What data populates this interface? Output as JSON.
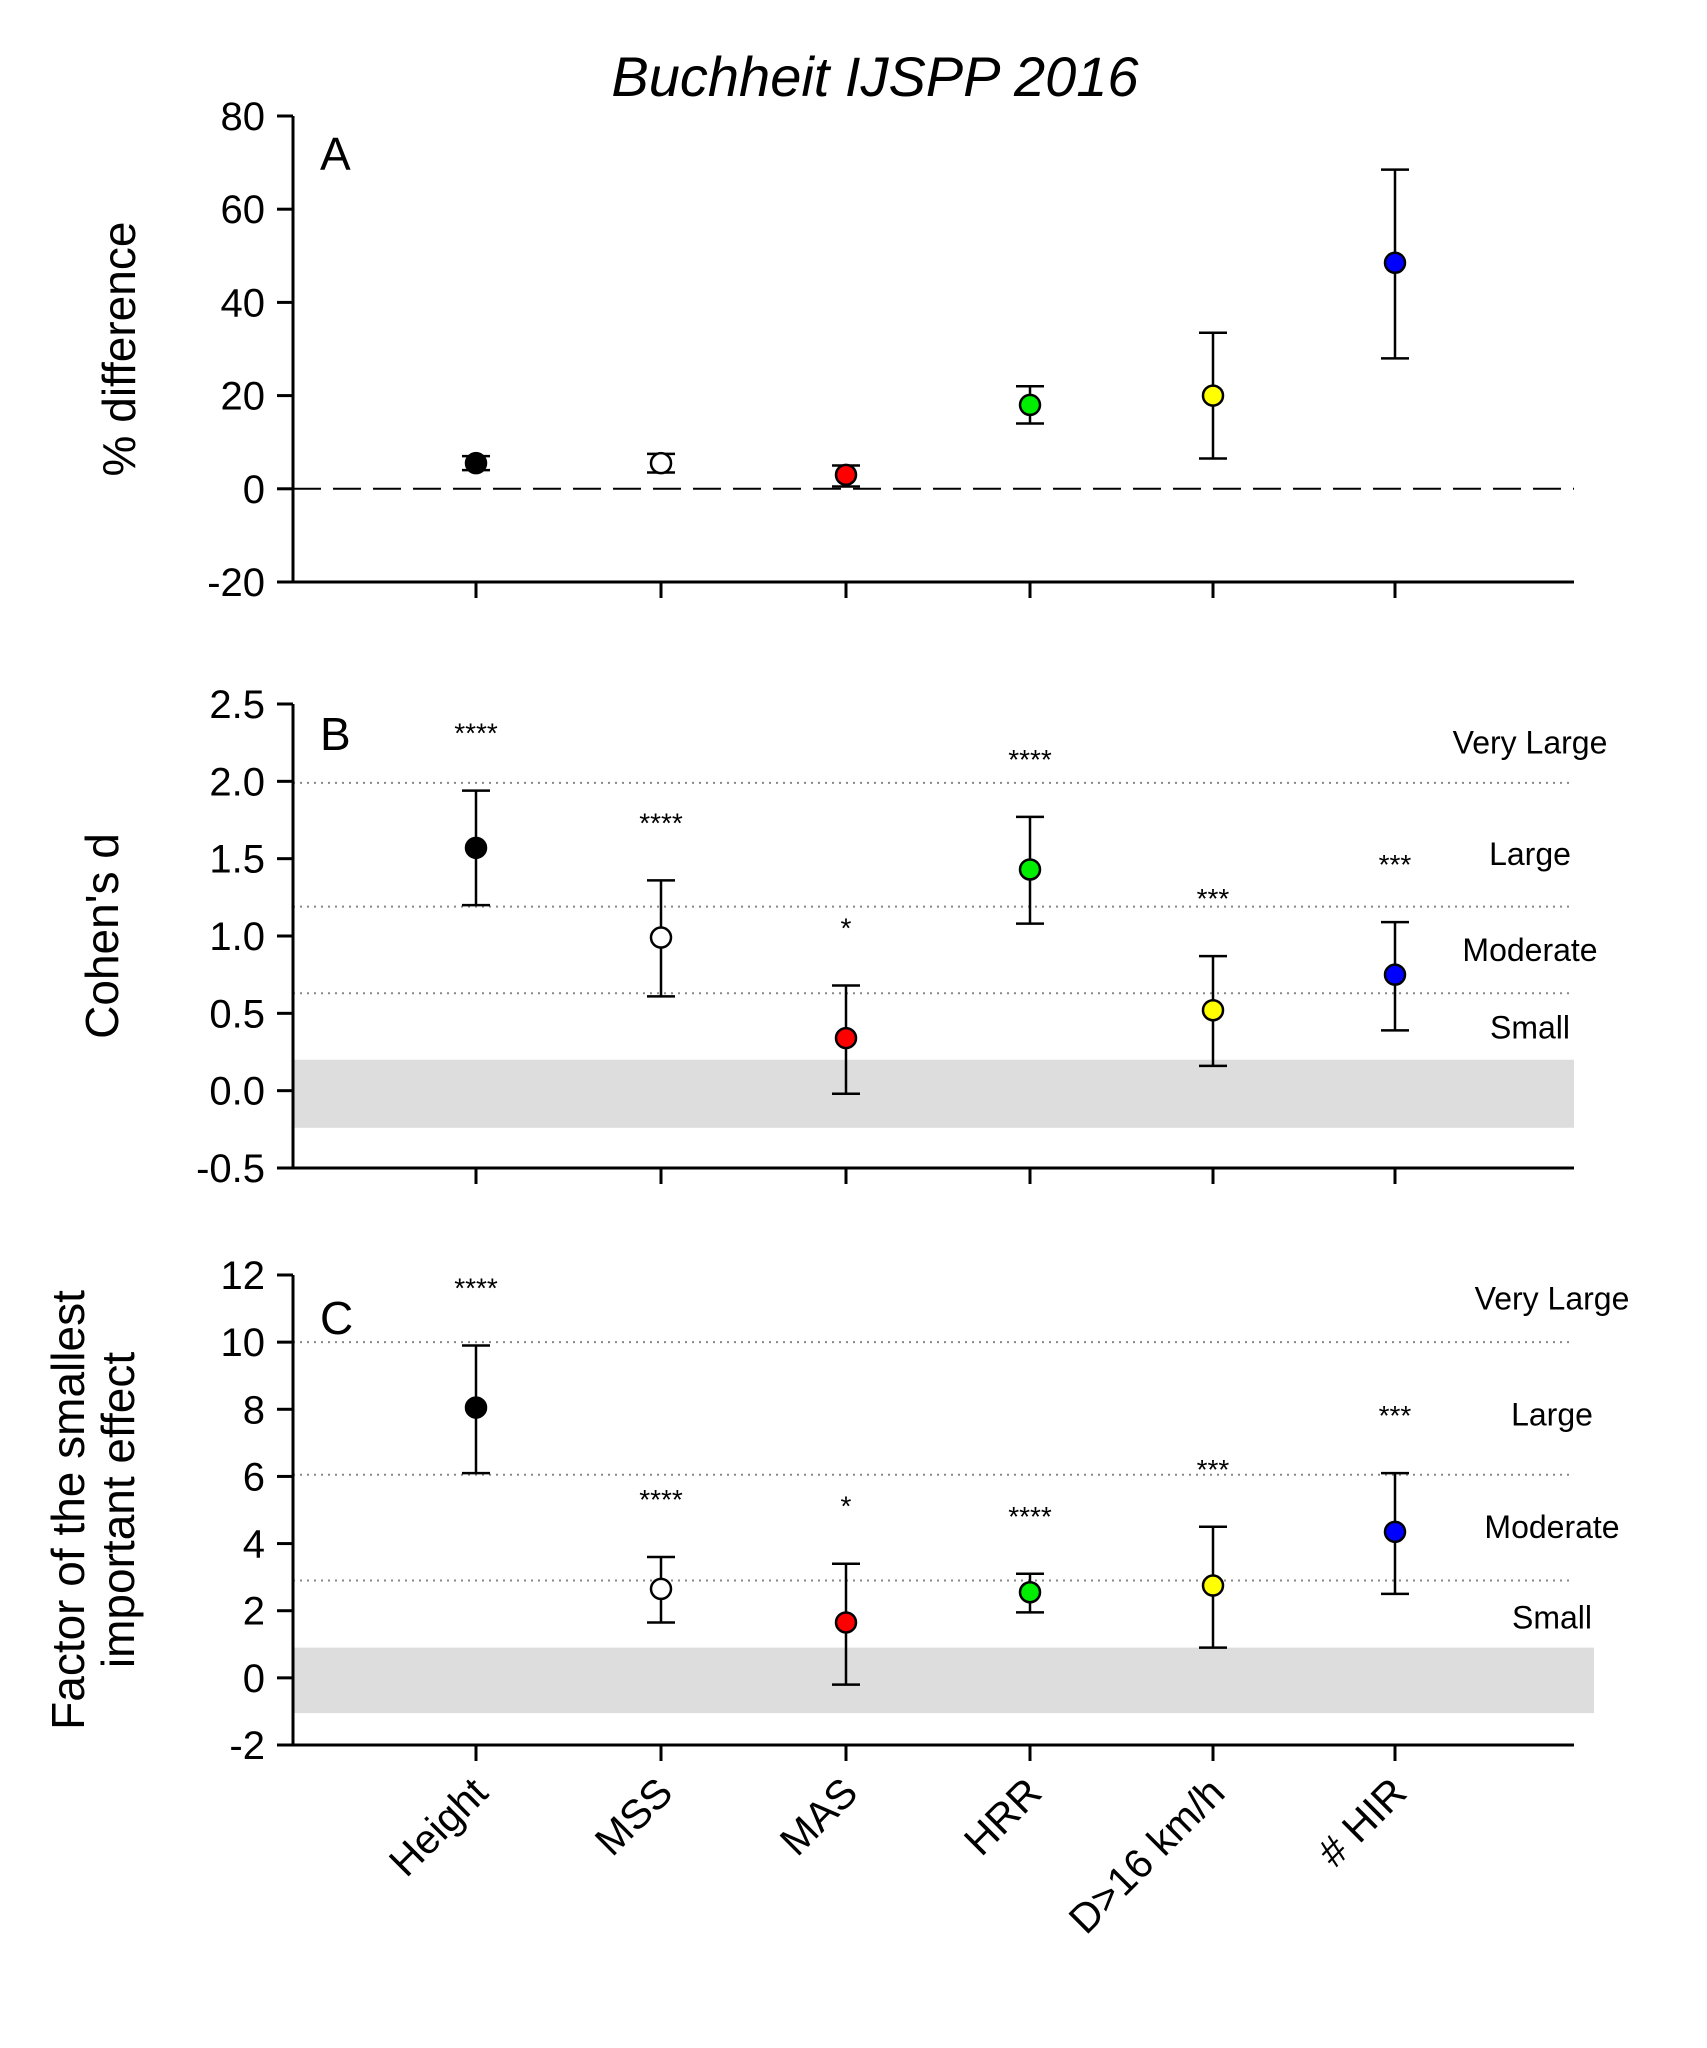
{
  "figure_title": "Buchheit IJSPP 2016",
  "colors": {
    "Height": "#000000",
    "MSS": "#ffffff",
    "MAS": "#ff0000",
    "HRR": "#00ee00",
    "D>16 km/h": "#ffff00",
    "# HIR": "#0000ff",
    "trivial_band": "#dddddd"
  },
  "chart_data": [
    {
      "type": "scatter",
      "panel": "A",
      "ylabel": "% difference",
      "ylim": [
        -20,
        80
      ],
      "yticks": [
        -20,
        0,
        20,
        40,
        60,
        80
      ],
      "categories": [
        "Height",
        "MSS",
        "MAS",
        "HRR",
        "D>16 km/h",
        "# HIR"
      ],
      "values": [
        5.5,
        5.5,
        3,
        18,
        20,
        48.5
      ],
      "lower": [
        4,
        3.5,
        0.5,
        14,
        6.5,
        28
      ],
      "upper": [
        7,
        7.5,
        5,
        22,
        33.5,
        68.5
      ],
      "significance": [
        "",
        "",
        "",
        "",
        "",
        ""
      ],
      "reference_line": 0,
      "thresholds": [],
      "band_labels": [],
      "grid": false
    },
    {
      "type": "scatter",
      "panel": "B",
      "ylabel": "Cohen's d",
      "ylim": [
        -0.5,
        2.5
      ],
      "yticks": [
        "-0.5",
        "0.0",
        "0.5",
        "1.0",
        "1.5",
        "2.0",
        "2.5"
      ],
      "categories": [
        "Height",
        "MSS",
        "MAS",
        "HRR",
        "D>16 km/h",
        "# HIR"
      ],
      "values": [
        1.57,
        0.99,
        0.34,
        1.43,
        0.52,
        0.75
      ],
      "lower": [
        1.2,
        0.61,
        -0.02,
        1.08,
        0.16,
        0.39
      ],
      "upper": [
        1.94,
        1.36,
        0.68,
        1.77,
        0.87,
        1.09
      ],
      "significance": [
        "****",
        "****",
        "*",
        "****",
        "***",
        "***"
      ],
      "trivial_band": [
        -0.24,
        0.2
      ],
      "thresholds": [
        0.63,
        1.19,
        1.99
      ],
      "band_labels": [
        {
          "text": "Very Large",
          "y": 2.25
        },
        {
          "text": "Large",
          "y": 1.53
        },
        {
          "text": "Moderate",
          "y": 0.91
        },
        {
          "text": "Small",
          "y": 0.41
        }
      ],
      "grid": false
    },
    {
      "type": "scatter",
      "panel": "C",
      "ylabel_lines": [
        "Factor of the smallest",
        "important effect"
      ],
      "ylim": [
        -2,
        12
      ],
      "yticks": [
        -2,
        0,
        2,
        4,
        6,
        8,
        10,
        12
      ],
      "categories": [
        "Height",
        "MSS",
        "MAS",
        "HRR",
        "D>16 km/h",
        "# HIR"
      ],
      "values": [
        8.05,
        2.65,
        1.65,
        2.55,
        2.75,
        4.35
      ],
      "lower": [
        6.1,
        1.65,
        -0.2,
        1.95,
        0.9,
        2.5
      ],
      "upper": [
        9.9,
        3.6,
        3.4,
        3.1,
        4.5,
        6.1
      ],
      "significance": [
        "****",
        "****",
        "*",
        "****",
        "***",
        "***"
      ],
      "trivial_band": [
        -1.05,
        0.9
      ],
      "thresholds": [
        2.9,
        6.05,
        10.0
      ],
      "band_labels": [
        {
          "text": "Very Large",
          "y": 11.3
        },
        {
          "text": "Large",
          "y": 7.85
        },
        {
          "text": "Moderate",
          "y": 4.5
        },
        {
          "text": "Small",
          "y": 1.8
        }
      ],
      "grid": false
    }
  ]
}
